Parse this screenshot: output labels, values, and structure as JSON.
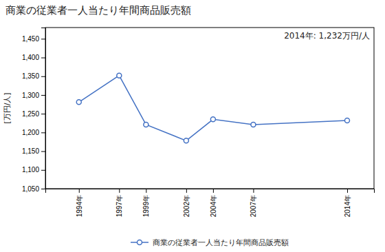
{
  "chart_data": {
    "type": "line",
    "title": "商業の従業者一人当たり年間商品販売額",
    "ylabel": "[万円/人]",
    "annotation": "2014年: 1,232万円/人",
    "x": [
      1994,
      1997,
      1999,
      2002,
      2004,
      2007,
      2014
    ],
    "xlim": [
      1991.5,
      2016
    ],
    "xticks": [
      {
        "value": 1994,
        "label": "1994年"
      },
      {
        "value": 1997,
        "label": "1997年"
      },
      {
        "value": 1999,
        "label": "1999年"
      },
      {
        "value": 2002,
        "label": "2002年"
      },
      {
        "value": 2004,
        "label": "2004年"
      },
      {
        "value": 2007,
        "label": "2007年"
      },
      {
        "value": 2014,
        "label": "2014年"
      }
    ],
    "ylim": [
      1050,
      1480
    ],
    "yticks": [
      {
        "value": 1050,
        "label": "1,050"
      },
      {
        "value": 1100,
        "label": "1,100"
      },
      {
        "value": 1150,
        "label": "1,150"
      },
      {
        "value": 1200,
        "label": "1,200"
      },
      {
        "value": 1250,
        "label": "1,250"
      },
      {
        "value": 1300,
        "label": "1,300"
      },
      {
        "value": 1350,
        "label": "1,350"
      },
      {
        "value": 1400,
        "label": "1,400"
      },
      {
        "value": 1450,
        "label": "1,450"
      }
    ],
    "series": [
      {
        "name": "商業の従業者一人当たり年間商品販売額",
        "color": "#4472C4",
        "marker": "circle",
        "values": [
          1281,
          1352,
          1221,
          1178,
          1235,
          1221,
          1232
        ]
      }
    ],
    "grid": false,
    "legend": "bottom"
  }
}
